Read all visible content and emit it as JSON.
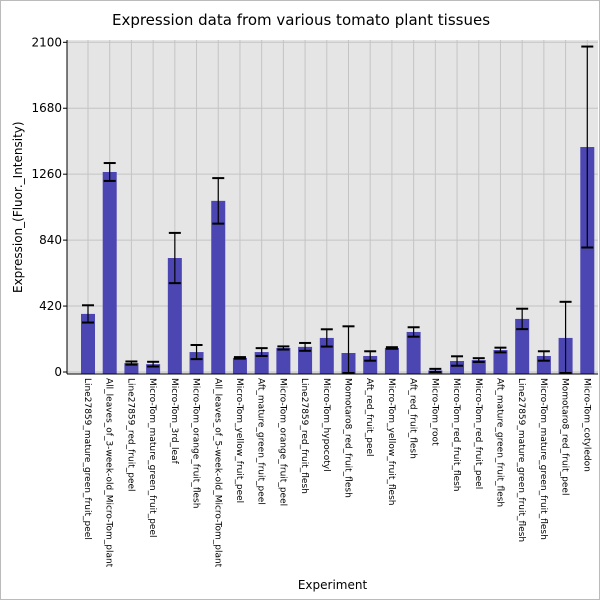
{
  "chart_data": {
    "type": "bar",
    "title": "Expression data from various tomato plant tissues",
    "xlabel": "Experiment",
    "ylabel": "Expression_(Fluor._Intensity)",
    "ylim": [
      -30,
      2170
    ],
    "yticks": [
      0,
      420,
      840,
      1260,
      1680,
      2100
    ],
    "grid": true,
    "bar_color": "#4c46b2",
    "categories": [
      "Line27859_mature_green_fruit_peel",
      "All_leaves_of_3-week-old_Micro-Tom_plant",
      "Line27859_red_fruit_peel",
      "Micro-Tom_mature_green_fruit_peel",
      "Micro-Tom_3rd_leaf",
      "Micro-Tom_orange_fruit_flesh",
      "All_leaves_of_5-week-old_Micro-Tom_plant",
      "Micro-Tom_yellow_fruit_peel",
      "Aft_mature_green_fruit_peel",
      "Micro-Tom_orange_fruit_peel",
      "Line27859_red_fruit_flesh",
      "Micro-Tom_hypocotyl",
      "Momotaro8_red_fruit_flesh",
      "Aft_red_fruit_peel",
      "Micro-Tom_yellow_fruit_flesh",
      "Aft_red_fruit_flesh",
      "Micro-Tom_root",
      "Micro-Tom_red_fruit_flesh",
      "Micro-Tom_red_fruit_peel",
      "Aft_mature_green_fruit_flesh",
      "Line27859_mature_green_fruit_flesh",
      "Micro-Tom_mature_green_fruit_flesh",
      "Momotaro8_red_fruit_peel",
      "Micro-Tom_cotyledon"
    ],
    "values": [
      370,
      1274,
      57,
      50,
      726,
      127,
      1090,
      90,
      127,
      153,
      160,
      217,
      121,
      102,
      153,
      255,
      10,
      70,
      76,
      140,
      338,
      102,
      217,
      1433
    ],
    "errors": [
      55,
      57,
      10,
      15,
      160,
      45,
      145,
      5,
      25,
      10,
      25,
      55,
      170,
      30,
      5,
      30,
      10,
      30,
      12,
      15,
      65,
      30,
      230,
      640
    ]
  }
}
